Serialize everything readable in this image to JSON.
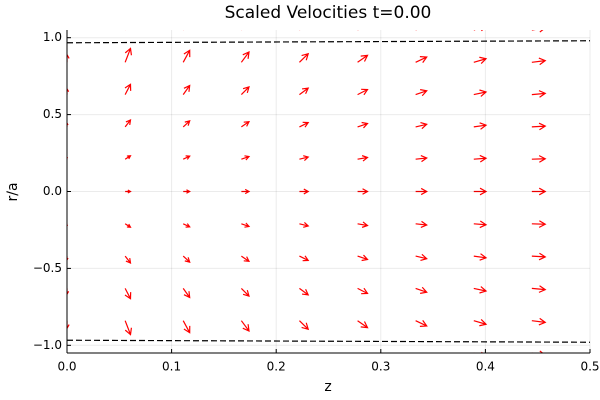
{
  "chart_data": {
    "type": "quiver",
    "title": "Scaled Velocities t=0.00",
    "xlabel": "z",
    "ylabel": "r/a",
    "color": "#ff0000",
    "grid": true,
    "xlim": [
      0,
      0.5
    ],
    "ylim": [
      -1.05,
      1.05
    ],
    "xticks": [
      {
        "value": 0,
        "label": "0.0"
      },
      0.1,
      0.2,
      0.3,
      0.4,
      0.5
    ],
    "yticks": [
      {
        "value": -1,
        "label": "−1.0"
      },
      {
        "value": -0.5,
        "label": "−0.5"
      },
      {
        "value": 0,
        "label": "0.0"
      },
      0.5,
      {
        "value": 1,
        "label": "1.0"
      }
    ],
    "rows": [
      -1.05,
      -0.84,
      -0.63,
      -0.42,
      -0.21,
      0,
      0.21,
      0.42,
      0.63,
      0.84,
      1.05
    ],
    "columns": [
      {
        "x": 0,
        "u": 0,
        "v": [
          -0.063,
          -0.05,
          -0.038,
          -0.025,
          -0.013,
          0,
          0.013,
          0.025,
          0.038,
          0.05,
          0.063
        ]
      },
      {
        "x": 0.0556,
        "u": 0.0051,
        "v": [
          -0.112,
          -0.09,
          -0.067,
          -0.045,
          -0.022,
          0,
          0.022,
          0.045,
          0.067,
          0.09,
          0.112
        ]
      },
      {
        "x": 0.1111,
        "u": 0.0062,
        "v": [
          -0.098,
          -0.078,
          -0.059,
          -0.039,
          -0.02,
          0,
          0.02,
          0.039,
          0.059,
          0.078,
          0.098
        ]
      },
      {
        "x": 0.1667,
        "u": 0.0073,
        "v": [
          -0.084,
          -0.067,
          -0.05,
          -0.034,
          -0.017,
          0,
          0.017,
          0.034,
          0.05,
          0.067,
          0.084
        ]
      },
      {
        "x": 0.2222,
        "u": 0.0084,
        "v": [
          -0.07,
          -0.056,
          -0.042,
          -0.028,
          -0.014,
          0,
          0.014,
          0.028,
          0.042,
          0.056,
          0.07
        ]
      },
      {
        "x": 0.2778,
        "u": 0.0095,
        "v": [
          -0.056,
          -0.045,
          -0.033,
          -0.022,
          -0.011,
          0,
          0.011,
          0.022,
          0.033,
          0.045,
          0.056
        ]
      },
      {
        "x": 0.3333,
        "u": 0.0106,
        "v": [
          -0.042,
          -0.034,
          -0.025,
          -0.017,
          -0.008,
          0,
          0.008,
          0.017,
          0.025,
          0.034,
          0.042
        ]
      },
      {
        "x": 0.3889,
        "u": 0.0117,
        "v": [
          -0.028,
          -0.023,
          -0.017,
          -0.011,
          -0.006,
          0,
          0.006,
          0.011,
          0.017,
          0.023,
          0.028
        ]
      },
      {
        "x": 0.4444,
        "u": 0.0128,
        "v": [
          -0.014,
          -0.011,
          -0.008,
          -0.005,
          -0.003,
          0,
          0.003,
          0.005,
          0.008,
          0.011,
          0.014
        ]
      },
      {
        "x": 0.5,
        "u": 0.0139,
        "v": [
          0,
          0,
          0,
          0,
          0,
          0,
          0,
          0,
          0,
          0,
          0
        ]
      }
    ],
    "boundary_color": "#000000",
    "boundary_lines": [
      {
        "x": [
          0,
          0.5
        ],
        "y": [
          0.967,
          0.98
        ]
      },
      {
        "x": [
          0,
          0.5
        ],
        "y": [
          -0.967,
          -0.98
        ]
      }
    ]
  }
}
